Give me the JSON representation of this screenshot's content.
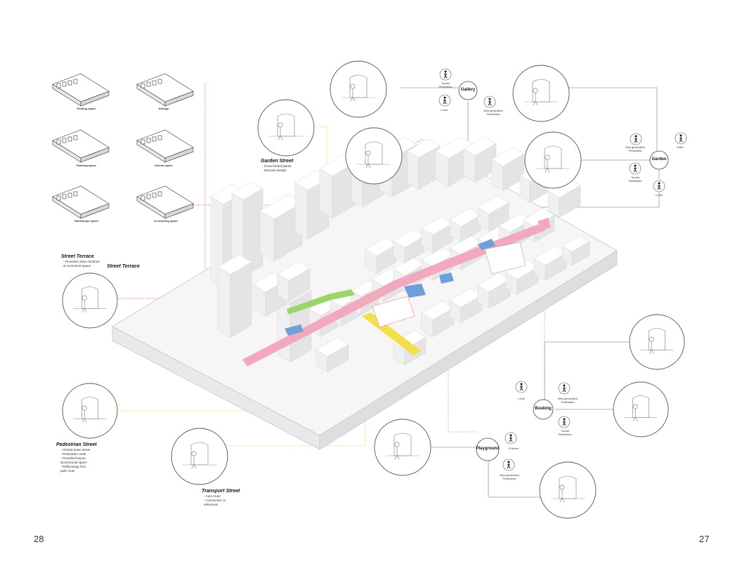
{
  "pages": {
    "left": "28",
    "right": "27"
  },
  "program_spaces": [
    {
      "label": "Resting space"
    },
    {
      "label": "Storage"
    },
    {
      "label": "Planting space"
    },
    {
      "label": "Events space"
    },
    {
      "label": "Workshops space"
    },
    {
      "label": "Co-working space"
    }
  ],
  "streets": {
    "street_terrace_heading": "Street Terrace",
    "street_terrace_desc": "- Provided urban furniture & communal space",
    "street_terrace_map_label": "Street Terrace",
    "garden_street_title": "Garden Street",
    "garden_street_desc": [
      "- Grow herbal plants",
      "- Educate people"
    ],
    "pedestrian_title": "Pedestrian Street",
    "pedestrian_desc": [
      "- Closed-down street",
      "- Pedestrian route",
      "- Provided leisure",
      "&communal space",
      "- Reflexology foot",
      "path route"
    ],
    "transport_title": "Transport Street",
    "transport_desc": [
      "- Auto route",
      "- Connection to",
      "entrances"
    ]
  },
  "hubs": {
    "gallery": {
      "name": "Gallery",
      "users": [
        "Tourist\nPedestrian",
        "Local",
        "New generation\nPedestrian"
      ]
    },
    "garden": {
      "name": "Garden",
      "users": [
        "New generation\nPedestrian",
        "Elder",
        "Tourist\nPedestrian",
        "Local"
      ]
    },
    "busking": {
      "name": "Busking",
      "users": [
        "Local",
        "New generation\nPedestrian",
        "Tourist\nPedestrian"
      ]
    },
    "playground": {
      "name": "Playground",
      "users": [
        "Children",
        "New generation\nPedestrian"
      ]
    }
  },
  "colors": {
    "pink": "#f3a9bd",
    "green": "#9fd46b",
    "blue": "#6f9fd8",
    "yellow": "#f2e04a",
    "red_line": "#e86a78",
    "blue_line": "#8fb8e6",
    "gray_line": "#9a9a9a"
  }
}
